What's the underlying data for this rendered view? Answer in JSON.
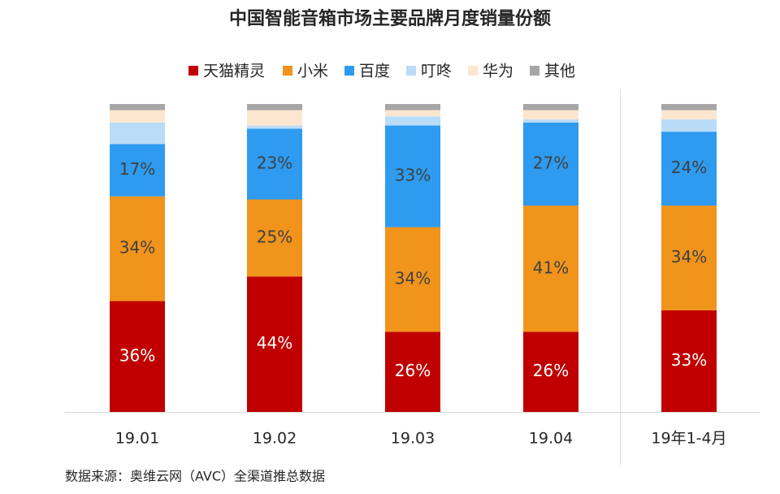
{
  "chart_data": {
    "type": "stacked_bar",
    "title": "中国智能音箱市场主要品牌月度销量份额",
    "categories": [
      "19.01",
      "19.02",
      "19.03",
      "19.04",
      "19年1-4月"
    ],
    "series": [
      {
        "name": "天猫精灵",
        "color": "#c00000",
        "values": [
          36,
          44,
          26,
          26,
          33
        ],
        "value_labels": [
          "36%",
          "44%",
          "26%",
          "26%",
          "33%"
        ]
      },
      {
        "name": "小米",
        "color": "#f0941c",
        "values": [
          34,
          25,
          34,
          41,
          34
        ],
        "value_labels": [
          "34%",
          "25%",
          "34%",
          "41%",
          "34%"
        ]
      },
      {
        "name": "百度",
        "color": "#2e9bf0",
        "values": [
          17,
          23,
          33,
          27,
          24
        ],
        "value_labels": [
          "17%",
          "23%",
          "33%",
          "27%",
          "24%"
        ]
      },
      {
        "name": "叮咚",
        "color": "#b9dcf9",
        "values": [
          7,
          1,
          3,
          1,
          4
        ]
      },
      {
        "name": "华为",
        "color": "#fce6cf",
        "values": [
          4,
          5,
          2,
          3,
          3
        ]
      },
      {
        "name": "其他",
        "color": "#a6a6a6",
        "values": [
          2,
          2,
          2,
          2,
          2
        ]
      }
    ],
    "ylim": [
      0,
      100
    ],
    "source": "数据来源：奥维云网（AVC）全渠道推总数据"
  }
}
